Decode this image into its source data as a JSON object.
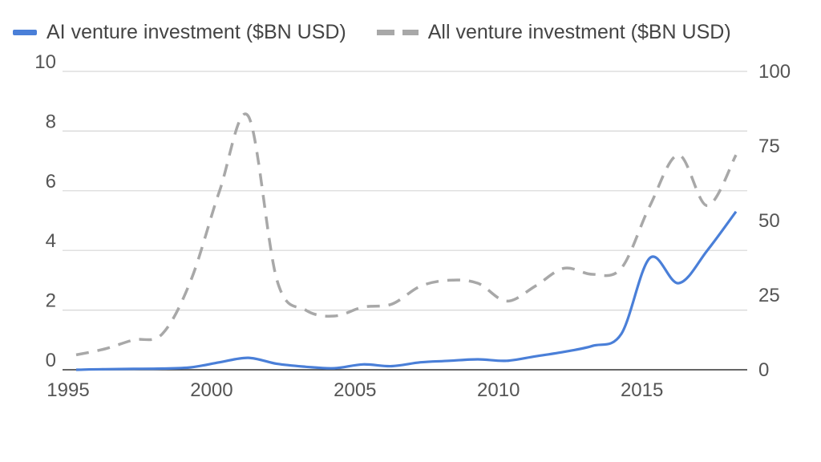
{
  "chart_data": {
    "type": "line",
    "legend_position": "top-left",
    "grid": true,
    "x_ticks": [
      1995,
      2000,
      2005,
      2010,
      2015
    ],
    "xlim": [
      1995,
      2018
    ],
    "left_axis": {
      "ticks": [
        0,
        2,
        4,
        6,
        8,
        10
      ],
      "ylim": [
        0,
        10
      ]
    },
    "right_axis": {
      "ticks": [
        0,
        25,
        50,
        75,
        100
      ],
      "ylim": [
        0,
        100
      ]
    },
    "series": [
      {
        "name": "AI venture investment ($BN USD)",
        "axis": "left",
        "style": "solid",
        "color": "#4a7fd8",
        "x": [
          1995,
          1996,
          1997,
          1998,
          1999,
          2000,
          2001,
          2002,
          2003,
          2004,
          2005,
          2006,
          2007,
          2008,
          2009,
          2010,
          2011,
          2012,
          2013,
          2014,
          2015,
          2016,
          2017,
          2018
        ],
        "values": [
          0.0,
          0.02,
          0.03,
          0.04,
          0.08,
          0.25,
          0.4,
          0.2,
          0.1,
          0.05,
          0.18,
          0.12,
          0.25,
          0.3,
          0.35,
          0.3,
          0.45,
          0.6,
          0.8,
          1.2,
          3.75,
          2.9,
          4.0,
          5.3
        ]
      },
      {
        "name": "All venture investment ($BN USD)",
        "axis": "right",
        "style": "dashed",
        "color": "#a8a8a8",
        "x": [
          1995,
          1996,
          1997,
          1998,
          1999,
          2000,
          2001,
          2002,
          2003,
          2004,
          2005,
          2006,
          2007,
          2008,
          2009,
          2010,
          2011,
          2012,
          2013,
          2014,
          2015,
          2016,
          2017,
          2018
        ],
        "values": [
          5,
          7,
          10,
          12,
          30,
          60,
          85,
          30,
          20,
          18,
          21,
          22,
          28,
          30,
          29,
          23,
          28,
          34,
          32,
          34,
          55,
          72,
          55,
          72
        ]
      }
    ]
  }
}
